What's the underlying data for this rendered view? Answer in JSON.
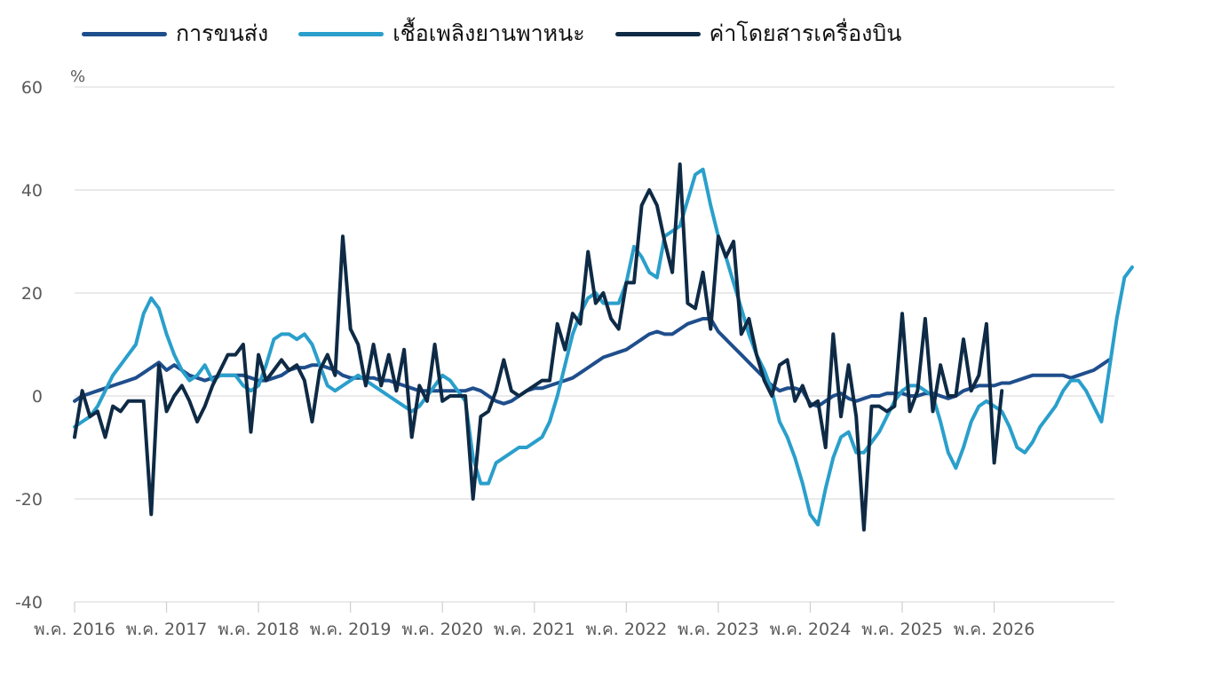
{
  "chart_data": {
    "type": "line",
    "unit": "%",
    "ylim": [
      -40,
      60
    ],
    "yticks": [
      -40,
      -20,
      0,
      20,
      40,
      60
    ],
    "grid": true,
    "legend_position": "top",
    "x_start": "2016-05",
    "x_step": "1 month",
    "xticks": [
      {
        "x": 0,
        "label": "พ.ค. 2016"
      },
      {
        "x": 12,
        "label": "พ.ค. 2017"
      },
      {
        "x": 24,
        "label": "พ.ค. 2018"
      },
      {
        "x": 36,
        "label": "พ.ค. 2019"
      },
      {
        "x": 48,
        "label": "พ.ค. 2020"
      },
      {
        "x": 60,
        "label": "พ.ค. 2021"
      },
      {
        "x": 72,
        "label": "พ.ค. 2022"
      },
      {
        "x": 84,
        "label": "พ.ค. 2023"
      },
      {
        "x": 96,
        "label": "พ.ค. 2024"
      },
      {
        "x": 108,
        "label": "พ.ค. 2025"
      },
      {
        "x": 120,
        "label": "พ.ค. 2026"
      }
    ],
    "series": [
      {
        "name": "การขนส่ง",
        "color": "#1f4e8c",
        "values": [
          -1,
          0,
          0.5,
          1,
          1.5,
          2,
          2.5,
          3,
          3.5,
          4.5,
          5.5,
          6.5,
          5,
          6,
          5,
          4,
          3.5,
          3,
          3.5,
          4,
          4,
          4,
          4,
          3.5,
          3,
          3,
          3.5,
          4,
          5,
          5.5,
          5.5,
          6,
          6,
          5.5,
          5,
          4,
          3.5,
          3.5,
          3.5,
          3.5,
          3,
          3,
          2.5,
          2,
          1.5,
          1,
          1,
          1,
          1,
          1,
          1,
          1,
          1.5,
          1,
          0,
          -1,
          -1.5,
          -1,
          0,
          1,
          1.5,
          1.5,
          2,
          2.5,
          3,
          3.5,
          4.5,
          5.5,
          6.5,
          7.5,
          8,
          8.5,
          9,
          10,
          11,
          12,
          12.5,
          12,
          12,
          13,
          14,
          14.5,
          15,
          15,
          12.5,
          11,
          9.5,
          8,
          6.5,
          5,
          3.5,
          2,
          1,
          1.5,
          1.5,
          1,
          -1.5,
          -2,
          -1,
          0,
          0.5,
          -0.5,
          -1,
          -0.5,
          0,
          0,
          0.5,
          0.5,
          0.5,
          0,
          0,
          0.5,
          0.5,
          0,
          -0.5,
          0,
          1,
          1.5,
          2,
          2,
          2,
          2.5,
          2.5,
          3,
          3.5,
          4,
          4,
          4,
          4,
          4,
          3.5,
          4,
          4.5,
          5,
          6,
          7
        ]
      },
      {
        "name": "เชื้อเพลิงยานพาหนะ",
        "color": "#2a9fcb",
        "values": [
          -6,
          -5,
          -4,
          -2,
          1,
          4,
          6,
          8,
          10,
          16,
          19,
          17,
          12,
          8,
          5,
          3,
          4,
          6,
          3,
          4,
          4,
          4,
          2,
          1,
          2,
          6,
          11,
          12,
          12,
          11,
          12,
          10,
          6,
          2,
          1,
          2,
          3,
          4,
          3,
          2,
          1,
          0,
          -1,
          -2,
          -3,
          -2,
          0,
          2,
          4,
          3,
          1,
          -1,
          -12,
          -17,
          -17,
          -13,
          -12,
          -11,
          -10,
          -10,
          -9,
          -8,
          -5,
          0,
          6,
          12,
          16,
          19,
          20,
          18,
          18,
          18,
          22,
          29,
          27,
          24,
          23,
          31,
          32,
          33,
          38,
          43,
          44,
          37,
          31,
          27,
          22,
          17,
          12,
          8,
          5,
          1,
          -5,
          -8,
          -12,
          -17,
          -23,
          -25,
          -18,
          -12,
          -8,
          -7,
          -11,
          -11,
          -9,
          -7,
          -4,
          -1,
          1,
          2,
          2,
          1,
          0,
          -5,
          -11,
          -14,
          -10,
          -5,
          -2,
          -1,
          -2,
          -3,
          -6,
          -10,
          -11,
          -9,
          -6,
          -4,
          -2,
          1,
          3,
          3,
          1,
          -2,
          -5,
          5,
          15,
          23,
          25
        ]
      },
      {
        "name": "ค่าโดยสารเครื่องบิน",
        "color": "#0e2a45",
        "values": [
          -8,
          1,
          -4,
          -3,
          -8,
          -2,
          -3,
          -1,
          -1,
          -1,
          -23,
          6,
          -3,
          0,
          2,
          -1,
          -5,
          -2,
          2,
          5,
          8,
          8,
          10,
          -7,
          8,
          3,
          5,
          7,
          5,
          6,
          3,
          -5,
          5,
          8,
          4,
          31,
          13,
          10,
          2,
          10,
          2,
          8,
          1,
          9,
          -8,
          2,
          -1,
          10,
          -1,
          0,
          0,
          0,
          -20,
          -4,
          -3,
          1,
          7,
          1,
          0,
          1,
          2,
          3,
          3,
          14,
          9,
          16,
          14,
          28,
          18,
          20,
          15,
          13,
          22,
          22,
          37,
          40,
          37,
          30,
          24,
          45,
          18,
          17,
          24,
          13,
          31,
          27,
          30,
          12,
          15,
          8,
          3,
          0,
          6,
          7,
          -1,
          2,
          -2,
          -1,
          -10,
          12,
          -4,
          6,
          -4,
          -26,
          -2,
          -2,
          -3,
          -2,
          16,
          -3,
          1,
          15,
          -3,
          6,
          0,
          0,
          11,
          1,
          4,
          14,
          -13,
          1
        ]
      }
    ]
  }
}
